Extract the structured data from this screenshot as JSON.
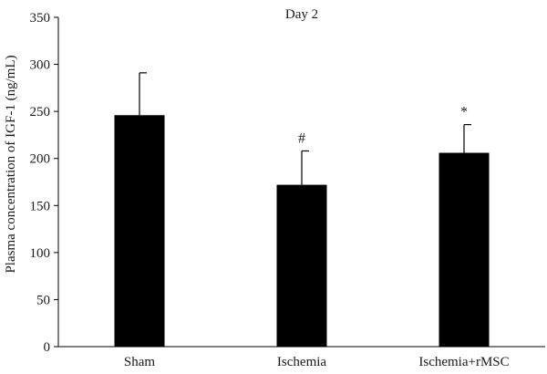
{
  "chart_data": {
    "type": "bar",
    "title": "Day 2",
    "xlabel": "",
    "ylabel": "Plasma concentration of IGF-1 (ng/mL)",
    "categories": [
      "Sham",
      "Ischemia",
      "Ischemia+rMSC"
    ],
    "values": [
      246,
      172,
      206
    ],
    "errors": [
      45,
      36,
      30
    ],
    "annotations": [
      "",
      "#",
      "*"
    ],
    "ylim": [
      0,
      350
    ],
    "yticks": [
      0,
      50,
      100,
      150,
      200,
      250,
      300,
      350
    ],
    "grid": false,
    "legend": "none",
    "bar_color": "#000000"
  }
}
